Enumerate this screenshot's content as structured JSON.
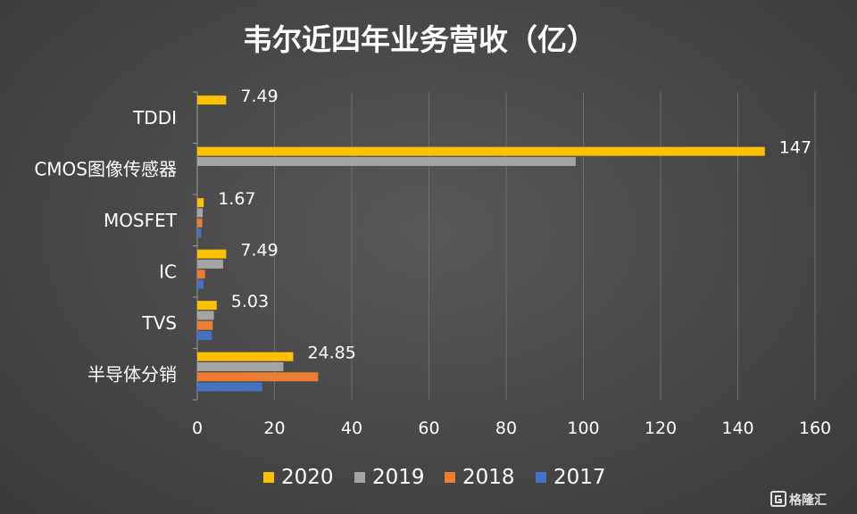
{
  "chart_data": {
    "type": "bar",
    "orientation": "horizontal",
    "title": "韦尔近四年业务营收（亿）",
    "categories": [
      "TDDI",
      "CMOS图像传感器",
      "MOSFET",
      "IC",
      "TVS",
      "半导体分销"
    ],
    "series": [
      {
        "name": "2020",
        "color": "#FFC000",
        "values": [
          7.49,
          147,
          1.67,
          7.49,
          5.03,
          24.85
        ],
        "labels": [
          "7.49",
          "147",
          "1.67",
          "7.49",
          "5.03",
          "24.85"
        ]
      },
      {
        "name": "2019",
        "color": "#A5A5A5",
        "values": [
          null,
          98,
          1.4,
          6.7,
          4.3,
          22.3
        ]
      },
      {
        "name": "2018",
        "color": "#ED7D31",
        "values": [
          null,
          null,
          1.3,
          2.0,
          4.0,
          31.3
        ]
      },
      {
        "name": "2017",
        "color": "#4472C4",
        "values": [
          null,
          null,
          1.0,
          1.6,
          3.8,
          16.8
        ]
      }
    ],
    "xlim": [
      0,
      160
    ],
    "xticks": [
      0,
      20,
      40,
      60,
      80,
      100,
      120,
      140,
      160
    ],
    "tick_labels": [
      "0",
      "20",
      "40",
      "60",
      "80",
      "100",
      "120",
      "140",
      "160"
    ],
    "xlabel": "",
    "ylabel": "",
    "grid": true,
    "legend_position": "bottom",
    "legend": [
      {
        "name": "2020",
        "color": "#FFC000"
      },
      {
        "name": "2019",
        "color": "#A5A5A5"
      },
      {
        "name": "2018",
        "color": "#ED7D31"
      },
      {
        "name": "2017",
        "color": "#4472C4"
      }
    ]
  },
  "watermark": {
    "text": "格隆汇",
    "icon": "g-logo-icon"
  }
}
